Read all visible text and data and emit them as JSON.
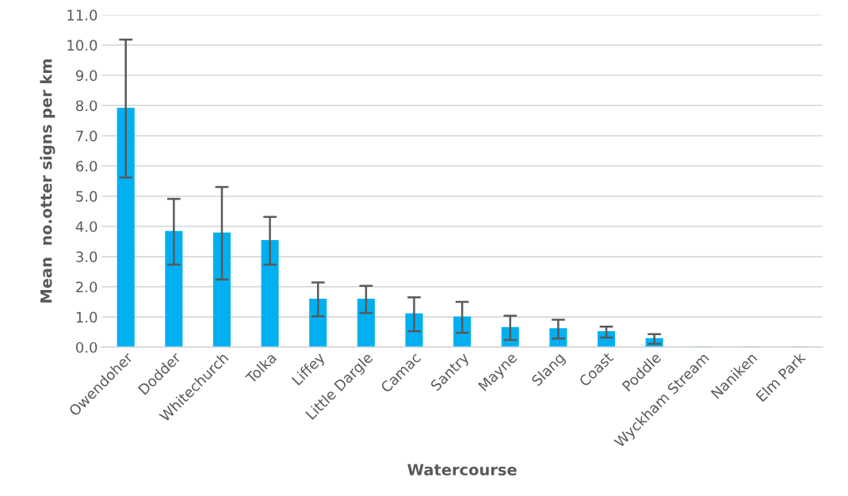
{
  "chart_data": {
    "type": "bar",
    "xlabel": "Watercourse",
    "ylabel": "Mean  no.otter signs per km",
    "categories": [
      "Owendoher",
      "Dodder",
      "Whitechurch",
      "Tolka",
      "Liffey",
      "Little Dargle",
      "Camac",
      "Santry",
      "Mayne",
      "Slang",
      "Coast",
      "Poddle",
      "Wyckham Stream",
      "Naniken",
      "Elm Park"
    ],
    "values": [
      7.9,
      3.82,
      3.77,
      3.52,
      1.58,
      1.58,
      1.09,
      0.99,
      0.64,
      0.6,
      0.5,
      0.27,
      0,
      0,
      0
    ],
    "errors": [
      2.28,
      1.09,
      1.53,
      0.79,
      0.56,
      0.45,
      0.56,
      0.51,
      0.4,
      0.31,
      0.18,
      0.16,
      null,
      null,
      null
    ],
    "color": "#00b0f0",
    "ylim": [
      0,
      11
    ],
    "yticks": [
      {
        "value": 0,
        "label": "0.0"
      },
      {
        "value": 1,
        "label": "1.0"
      },
      {
        "value": 2,
        "label": "2.0"
      },
      {
        "value": 3,
        "label": "3.0"
      },
      {
        "value": 4,
        "label": "4.0"
      },
      {
        "value": 5,
        "label": "5.0"
      },
      {
        "value": 6,
        "label": "6.0"
      },
      {
        "value": 7,
        "label": "7.0"
      },
      {
        "value": 8,
        "label": "8.0"
      },
      {
        "value": 9,
        "label": "9.0"
      },
      {
        "value": 10,
        "label": "10.0"
      },
      {
        "value": 11,
        "label": "11.0"
      }
    ],
    "grid": "y"
  }
}
